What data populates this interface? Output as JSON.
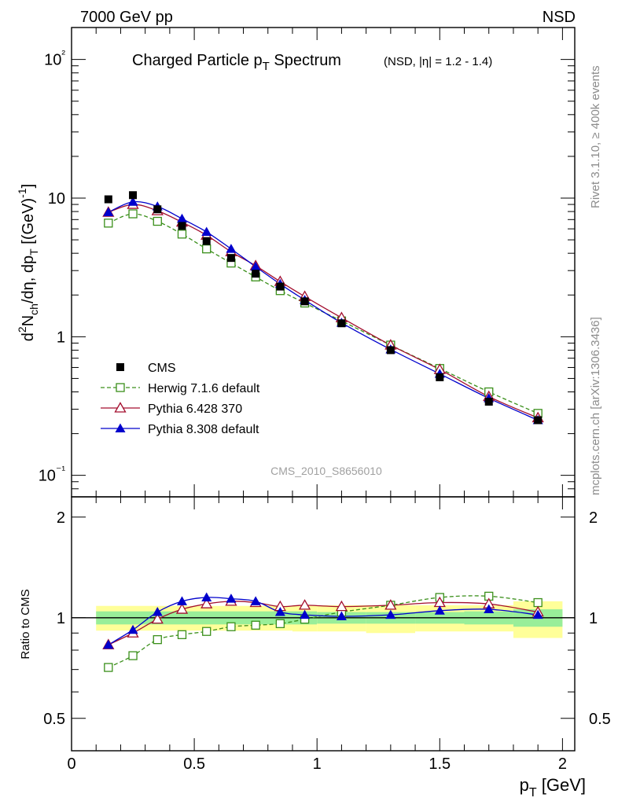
{
  "header": {
    "left": "7000 GeV pp",
    "right": "NSD"
  },
  "side_labels": {
    "rivet": "Rivet 3.1.10, ≥ 400k events",
    "mcplots": "mcplots.cern.ch [arXiv:1306.3436]"
  },
  "watermark": "CMS_2010_S8656010",
  "chart_data": [
    {
      "type": "scatter",
      "panel": "main",
      "title": "Charged Particle p_T Spectrum",
      "subtitle": "(NSD, |η| = 1.2 - 1.4)",
      "ylabel": "d²N_ch/dη, dp_T [(GeV)⁻¹]",
      "yscale": "log",
      "xlim": [
        0,
        2.05
      ],
      "ylim": [
        0.07,
        170
      ],
      "y_ticks": [
        "10⁻¹",
        "1",
        "10",
        "10²"
      ],
      "legend_position": "lower-left",
      "x": [
        0.15,
        0.25,
        0.35,
        0.45,
        0.55,
        0.65,
        0.75,
        0.85,
        0.95,
        1.1,
        1.3,
        1.5,
        1.7,
        1.9
      ],
      "series": [
        {
          "name": "CMS",
          "marker": "filled-square",
          "color": "#000000",
          "values": [
            9.8,
            10.5,
            8.3,
            6.3,
            4.9,
            3.7,
            2.85,
            2.3,
            1.8,
            1.25,
            0.8,
            0.51,
            0.34,
            0.25
          ]
        },
        {
          "name": "Herwig 7.1.6 default",
          "marker": "open-square",
          "line": "dashed",
          "color": "#3a8f1a",
          "values": [
            6.6,
            7.7,
            6.8,
            5.5,
            4.3,
            3.4,
            2.7,
            2.15,
            1.75,
            1.3,
            0.87,
            0.59,
            0.4,
            0.28
          ]
        },
        {
          "name": "Pythia 6.428 370",
          "marker": "open-triangle",
          "line": "solid",
          "color": "#a30e2e",
          "values": [
            7.9,
            9.0,
            8.1,
            6.7,
            5.4,
            4.1,
            3.25,
            2.5,
            1.95,
            1.37,
            0.87,
            0.58,
            0.37,
            0.26
          ]
        },
        {
          "name": "Pythia 8.308 default",
          "marker": "filled-triangle",
          "line": "solid",
          "color": "#0000cc",
          "values": [
            7.9,
            9.4,
            8.7,
            7.1,
            5.7,
            4.3,
            3.2,
            2.4,
            1.84,
            1.26,
            0.81,
            0.54,
            0.36,
            0.25
          ]
        }
      ]
    },
    {
      "type": "scatter",
      "panel": "ratio",
      "ylabel": "Ratio to CMS",
      "xlabel": "p_T [GeV]",
      "xlim": [
        0,
        2.05
      ],
      "ylim": [
        0.4,
        2.3
      ],
      "x_ticks": [
        "0",
        "0.5",
        "1",
        "1.5",
        "2"
      ],
      "y_ticks": [
        "0.5",
        "1",
        "2"
      ],
      "reference": 1,
      "bands": {
        "edges": [
          0.1,
          0.9,
          1.0,
          1.2,
          1.4,
          1.6,
          1.8,
          2.0
        ],
        "stat_lo": [
          0.955,
          0.955,
          0.96,
          0.96,
          0.96,
          0.955,
          0.94
        ],
        "stat_hi": [
          1.045,
          1.045,
          1.04,
          1.04,
          1.04,
          1.045,
          1.06
        ],
        "syst_lo": [
          0.915,
          0.91,
          0.91,
          0.9,
          0.91,
          0.91,
          0.87
        ],
        "syst_hi": [
          1.085,
          1.09,
          1.09,
          1.09,
          1.09,
          1.09,
          1.12
        ]
      },
      "x": [
        0.15,
        0.25,
        0.35,
        0.45,
        0.55,
        0.65,
        0.75,
        0.85,
        0.95,
        1.1,
        1.3,
        1.5,
        1.7,
        1.9
      ],
      "series": [
        {
          "name": "Herwig 7.1.6 default",
          "color": "#3a8f1a",
          "values": [
            0.71,
            0.77,
            0.86,
            0.89,
            0.91,
            0.94,
            0.95,
            0.96,
            0.99,
            1.04,
            1.09,
            1.15,
            1.16,
            1.11
          ]
        },
        {
          "name": "Pythia 6.428 370",
          "color": "#a30e2e",
          "values": [
            0.83,
            0.9,
            0.99,
            1.06,
            1.1,
            1.12,
            1.11,
            1.08,
            1.09,
            1.08,
            1.09,
            1.11,
            1.1,
            1.04
          ]
        },
        {
          "name": "Pythia 8.308 default",
          "color": "#0000cc",
          "values": [
            0.83,
            0.92,
            1.04,
            1.12,
            1.15,
            1.14,
            1.12,
            1.04,
            1.02,
            1.01,
            1.02,
            1.05,
            1.06,
            1.02
          ]
        }
      ]
    }
  ]
}
